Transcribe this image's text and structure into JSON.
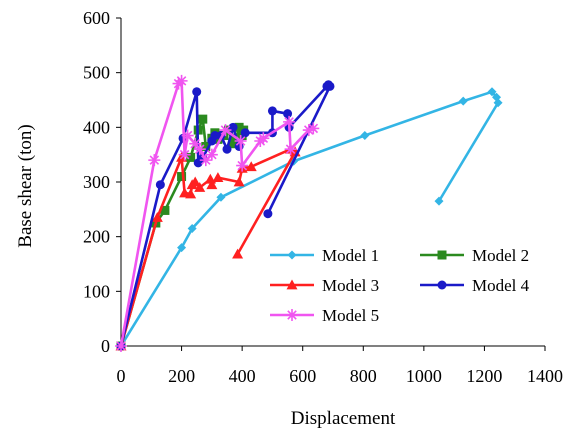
{
  "chart_data": {
    "type": "line",
    "title": "",
    "xlabel": "Displacement",
    "ylabel": "Base shear (ton)",
    "xlim": [
      0,
      1400
    ],
    "ylim": [
      0,
      600
    ],
    "xticks": [
      0,
      200,
      400,
      600,
      800,
      1000,
      1200,
      1400
    ],
    "yticks": [
      0,
      100,
      200,
      300,
      400,
      500,
      600
    ],
    "grid": false,
    "legend_position": "bottom-right",
    "series": [
      {
        "name": "Model 1",
        "color": "#33B5E5",
        "marker": "diamond",
        "x": [
          0,
          200,
          235,
          330,
          570,
          805,
          1130,
          1225,
          1240,
          1245,
          1050
        ],
        "y": [
          0,
          180,
          215,
          272,
          338,
          385,
          448,
          465,
          455,
          445,
          265
        ]
      },
      {
        "name": "Model 2",
        "color": "#2B8A1F",
        "marker": "square",
        "x": [
          0,
          115,
          145,
          200,
          230,
          255,
          270,
          280,
          300,
          310,
          320,
          340,
          355,
          370,
          380,
          390,
          400,
          405
        ],
        "y": [
          0,
          225,
          248,
          310,
          345,
          395,
          415,
          365,
          380,
          390,
          378,
          385,
          395,
          370,
          380,
          400,
          385,
          395
        ]
      },
      {
        "name": "Model 3",
        "color": "#FF2020",
        "marker": "triangle",
        "x": [
          0,
          120,
          200,
          210,
          230,
          235,
          245,
          260,
          295,
          300,
          320,
          390,
          400,
          430,
          560,
          575,
          385
        ],
        "y": [
          0,
          235,
          345,
          280,
          278,
          295,
          300,
          290,
          305,
          295,
          308,
          300,
          325,
          328,
          360,
          355,
          168
        ]
      },
      {
        "name": "Model 4",
        "color": "#1A1AC8",
        "marker": "circle",
        "x": [
          0,
          130,
          205,
          250,
          255,
          270,
          300,
          310,
          330,
          350,
          370,
          390,
          410,
          500,
          500,
          550,
          555,
          680,
          685,
          690,
          485
        ],
        "y": [
          0,
          295,
          380,
          465,
          335,
          345,
          375,
          385,
          385,
          360,
          400,
          365,
          390,
          390,
          430,
          425,
          400,
          475,
          478,
          475,
          242
        ]
      },
      {
        "name": "Model 5",
        "color": "#F055F0",
        "marker": "star",
        "x": [
          0,
          110,
          190,
          200,
          210,
          220,
          245,
          260,
          280,
          300,
          345,
          395,
          400,
          460,
          470,
          555,
          560,
          620,
          635
        ],
        "y": [
          0,
          340,
          480,
          485,
          350,
          385,
          370,
          360,
          340,
          350,
          395,
          375,
          330,
          375,
          380,
          410,
          360,
          395,
          398
        ]
      }
    ]
  }
}
